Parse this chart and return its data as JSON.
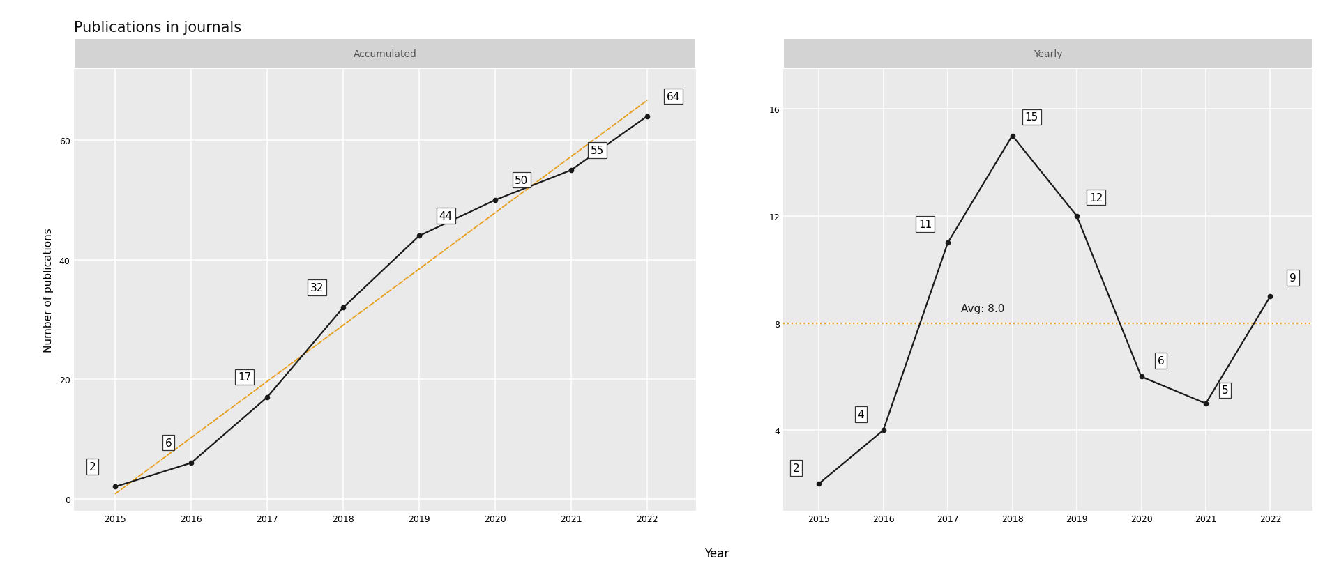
{
  "title": "Publications in journals",
  "xlabel": "Year",
  "ylabel": "Number of publications",
  "accumulated_label": "Accumulated",
  "yearly_label": "Yearly",
  "years": [
    2015,
    2016,
    2017,
    2018,
    2019,
    2020,
    2021,
    2022
  ],
  "accumulated": [
    2,
    6,
    17,
    32,
    44,
    50,
    55,
    64
  ],
  "yearly": [
    2,
    4,
    11,
    15,
    12,
    6,
    5,
    9
  ],
  "avg_yearly": 8.0,
  "avg_label": "Avg: 8.0",
  "line_color": "#1a1a1a",
  "trend_color": "#E8A020",
  "avg_color": "#E8A020",
  "background_color": "#FFFFFF",
  "strip_color": "#D3D3D3",
  "panel_bg": "#EAEAEA",
  "title_fontsize": 15,
  "label_fontsize": 11,
  "strip_fontsize": 10,
  "annotation_fontsize": 11,
  "tick_fontsize": 9,
  "acc_ylim": [
    -2,
    72
  ],
  "acc_yticks": [
    0,
    20,
    40,
    60
  ],
  "yearly_ylim": [
    1.0,
    17.5
  ],
  "yearly_yticks": [
    4,
    8,
    12,
    16
  ],
  "ann_offsets_acc_dx": [
    -0.3,
    -0.3,
    -0.3,
    -0.35,
    0.35,
    0.35,
    0.35,
    0.35
  ],
  "ann_offsets_acc_dy": [
    2.5,
    2.5,
    2.5,
    2.5,
    2.5,
    2.5,
    2.5,
    2.5
  ],
  "ann_offsets_yr_dx": [
    -0.35,
    -0.35,
    -0.35,
    0.3,
    0.3,
    0.3,
    0.3,
    0.35
  ],
  "ann_offsets_yr_dy": [
    0.4,
    0.4,
    0.5,
    0.5,
    0.5,
    0.4,
    0.3,
    0.5
  ]
}
